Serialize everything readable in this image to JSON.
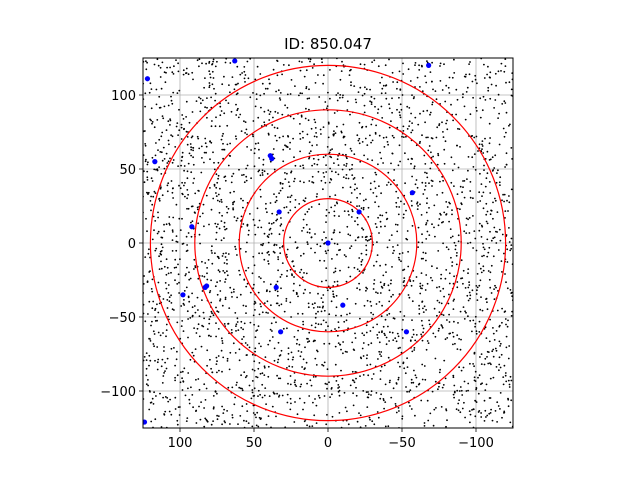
{
  "chart_data": {
    "type": "scatter",
    "title": "ID: 850.047",
    "xlabel": "",
    "ylabel": "",
    "xlim": [
      125,
      -125
    ],
    "ylim": [
      -125,
      125
    ],
    "x_ticks": [
      100,
      50,
      0,
      -50,
      -100
    ],
    "y_ticks": [
      -100,
      -50,
      0,
      50,
      100
    ],
    "x_tick_labels": [
      "100",
      "50",
      "0",
      "−50",
      "−100"
    ],
    "y_tick_labels": [
      "−100",
      "−50",
      "0",
      "50",
      "100"
    ],
    "grid": true,
    "background_points": {
      "color": "#000000",
      "approx_count": 3000,
      "distribution": "uniform"
    },
    "circles": {
      "color": "#ff0000",
      "center": [
        0,
        0
      ],
      "radii": [
        30,
        60,
        90,
        120
      ]
    },
    "highlighted_points": {
      "color": "#0000ff",
      "points": [
        [
          122,
          111
        ],
        [
          63,
          123
        ],
        [
          -68,
          120
        ],
        [
          117,
          55
        ],
        [
          39,
          59
        ],
        [
          38,
          57
        ],
        [
          -57,
          34
        ],
        [
          92,
          11
        ],
        [
          33,
          21
        ],
        [
          -21,
          21
        ],
        [
          0,
          0
        ],
        [
          98,
          -35
        ],
        [
          83,
          -30
        ],
        [
          82,
          -29
        ],
        [
          35,
          -30
        ],
        [
          -10,
          -42
        ],
        [
          32,
          -60
        ],
        [
          -53,
          -60
        ],
        [
          124,
          -121
        ]
      ]
    }
  }
}
